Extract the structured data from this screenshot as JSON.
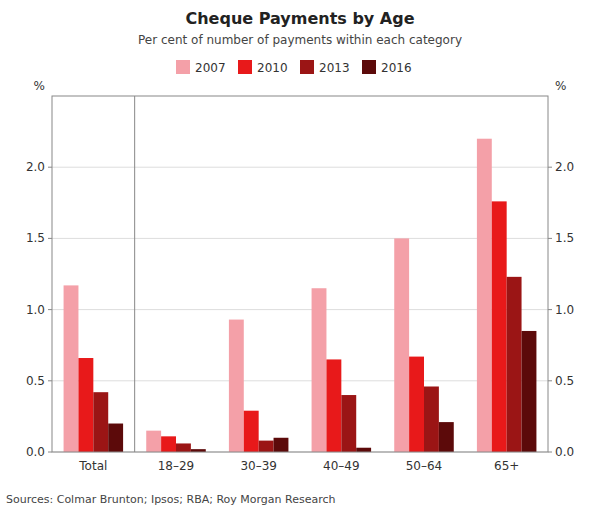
{
  "chart_data": {
    "type": "bar",
    "title": "Cheque Payments by Age",
    "subtitle": "Per cent of number of payments within each category",
    "source": "Sources: Colmar Brunton; Ipsos; RBA; Roy Morgan Research",
    "ylabel": "%",
    "y2label": "%",
    "categories": [
      "Total",
      "18–29",
      "30–39",
      "40–49",
      "50–64",
      "65+"
    ],
    "series": [
      {
        "name": "2007",
        "color": "#F4A0A8",
        "values": [
          1.17,
          0.15,
          0.93,
          1.15,
          1.5,
          2.2
        ]
      },
      {
        "name": "2010",
        "color": "#E8191A",
        "values": [
          0.66,
          0.11,
          0.29,
          0.65,
          0.67,
          1.76
        ]
      },
      {
        "name": "2013",
        "color": "#9B1515",
        "values": [
          0.42,
          0.06,
          0.08,
          0.4,
          0.46,
          1.23
        ]
      },
      {
        "name": "2016",
        "color": "#5C0A0A",
        "values": [
          0.2,
          0.02,
          0.1,
          0.03,
          0.21,
          0.85
        ]
      }
    ],
    "ylim": [
      0.0,
      2.5
    ],
    "yticks": [
      {
        "value": 0.0,
        "label": "0.0"
      },
      {
        "value": 0.5,
        "label": "0.5"
      },
      {
        "value": 1.0,
        "label": "1.0"
      },
      {
        "value": 1.5,
        "label": "1.5"
      },
      {
        "value": 2.0,
        "label": "2.0"
      }
    ],
    "y2lim": [
      0.0,
      2.5
    ],
    "y2ticks": [
      {
        "value": 0.0,
        "label": "0.0"
      },
      {
        "value": 0.5,
        "label": "0.5"
      },
      {
        "value": 1.0,
        "label": "1.0"
      },
      {
        "value": 1.5,
        "label": "1.5"
      },
      {
        "value": 2.0,
        "label": "2.0"
      }
    ],
    "grid": true,
    "legend": "top"
  }
}
